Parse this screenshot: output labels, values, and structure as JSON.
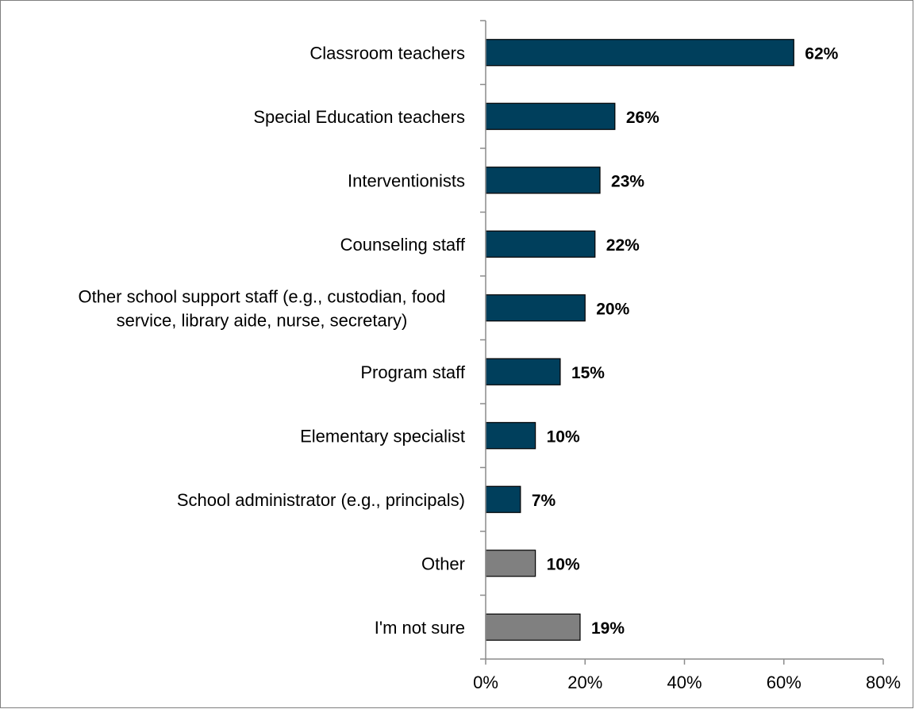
{
  "chart_data": {
    "type": "bar",
    "orientation": "horizontal",
    "categories": [
      "Classroom teachers",
      "Special Education teachers",
      "Interventionists",
      "Counseling staff",
      "Other school support staff (e.g., custodian, food service, library aide, nurse, secretary)",
      "Program staff",
      "Elementary specialist",
      "School administrator (e.g., principals)",
      "Other",
      "I'm not sure"
    ],
    "category_lines": [
      [
        "Classroom teachers"
      ],
      [
        "Special Education teachers"
      ],
      [
        "Interventionists"
      ],
      [
        "Counseling staff"
      ],
      [
        "Other school support staff (e.g., custodian, food",
        "service, library aide, nurse, secretary)"
      ],
      [
        "Program staff"
      ],
      [
        "Elementary specialist"
      ],
      [
        "School administrator (e.g., principals)"
      ],
      [
        "Other"
      ],
      [
        "I'm not sure"
      ]
    ],
    "values": [
      62,
      26,
      23,
      22,
      20,
      15,
      10,
      7,
      10,
      19
    ],
    "value_labels": [
      "62%",
      "26%",
      "23%",
      "22%",
      "20%",
      "15%",
      "10%",
      "7%",
      "10%",
      "19%"
    ],
    "bar_colors": [
      "#003f5c",
      "#003f5c",
      "#003f5c",
      "#003f5c",
      "#003f5c",
      "#003f5c",
      "#003f5c",
      "#003f5c",
      "#808080",
      "#808080"
    ],
    "xlim": [
      0,
      80
    ],
    "x_ticks": [
      0,
      20,
      40,
      60,
      80
    ],
    "x_tick_labels": [
      "0%",
      "20%",
      "40%",
      "60%",
      "80%"
    ],
    "grid": false,
    "legend": false,
    "title": "",
    "xlabel": "",
    "ylabel": ""
  },
  "colors": {
    "primary_bar": "#003f5c",
    "secondary_bar": "#808080",
    "axis": "#8c8c8c",
    "bar_outline": "#000000"
  }
}
